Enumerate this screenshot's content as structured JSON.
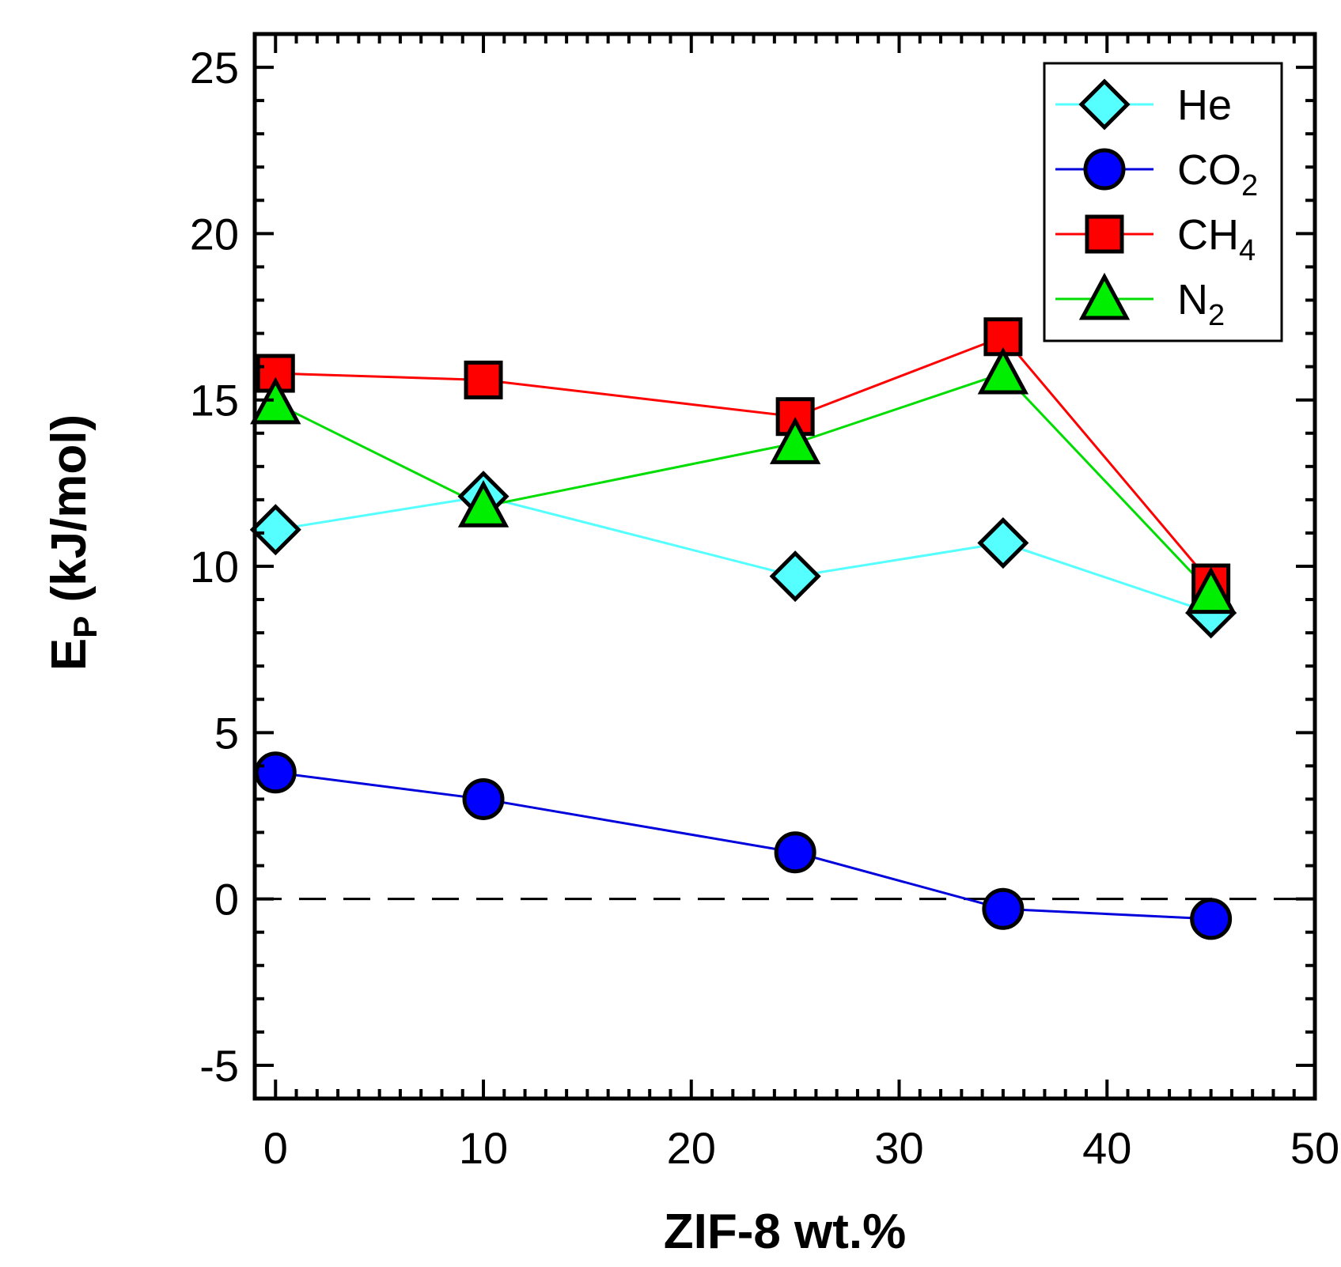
{
  "chart_data": {
    "type": "line",
    "title": "",
    "xlabel": "ZIF-8 wt.%",
    "ylabel_main": "E",
    "ylabel_sub": "P",
    "ylabel_units": " (kJ/mol)",
    "xlim": [
      -1,
      50
    ],
    "ylim": [
      -6,
      26
    ],
    "xticks": [
      0,
      10,
      20,
      30,
      40,
      50
    ],
    "yticks": [
      -5,
      0,
      5,
      10,
      15,
      20,
      25
    ],
    "reference_line": {
      "y": 0,
      "style": "dashed",
      "color": "#000000"
    },
    "legend_position": "top-right",
    "series": [
      {
        "name": "He",
        "name_main": "He",
        "name_sub": "",
        "marker": "diamond",
        "color": "#55ffff",
        "line_color": "#55ffff",
        "x": [
          0,
          10,
          25,
          35,
          45
        ],
        "y": [
          11.1,
          12.1,
          9.7,
          10.7,
          8.6
        ]
      },
      {
        "name": "CO2",
        "name_main": "CO",
        "name_sub": "2",
        "marker": "circle",
        "color": "#0000ff",
        "line_color": "#0000dd",
        "x": [
          0,
          10,
          25,
          35,
          45
        ],
        "y": [
          3.8,
          3.0,
          1.4,
          -0.3,
          -0.6
        ]
      },
      {
        "name": "CH4",
        "name_main": "CH",
        "name_sub": "4",
        "marker": "square",
        "color": "#ff0000",
        "line_color": "#ff0000",
        "x": [
          0,
          10,
          25,
          35,
          45
        ],
        "y": [
          15.8,
          15.6,
          14.5,
          16.9,
          9.5
        ]
      },
      {
        "name": "N2",
        "name_main": "N",
        "name_sub": "2",
        "marker": "triangle",
        "color": "#00ee00",
        "line_color": "#00dd00",
        "x": [
          0,
          10,
          25,
          35,
          45
        ],
        "y": [
          14.9,
          11.8,
          13.7,
          15.8,
          9.2
        ]
      }
    ]
  }
}
